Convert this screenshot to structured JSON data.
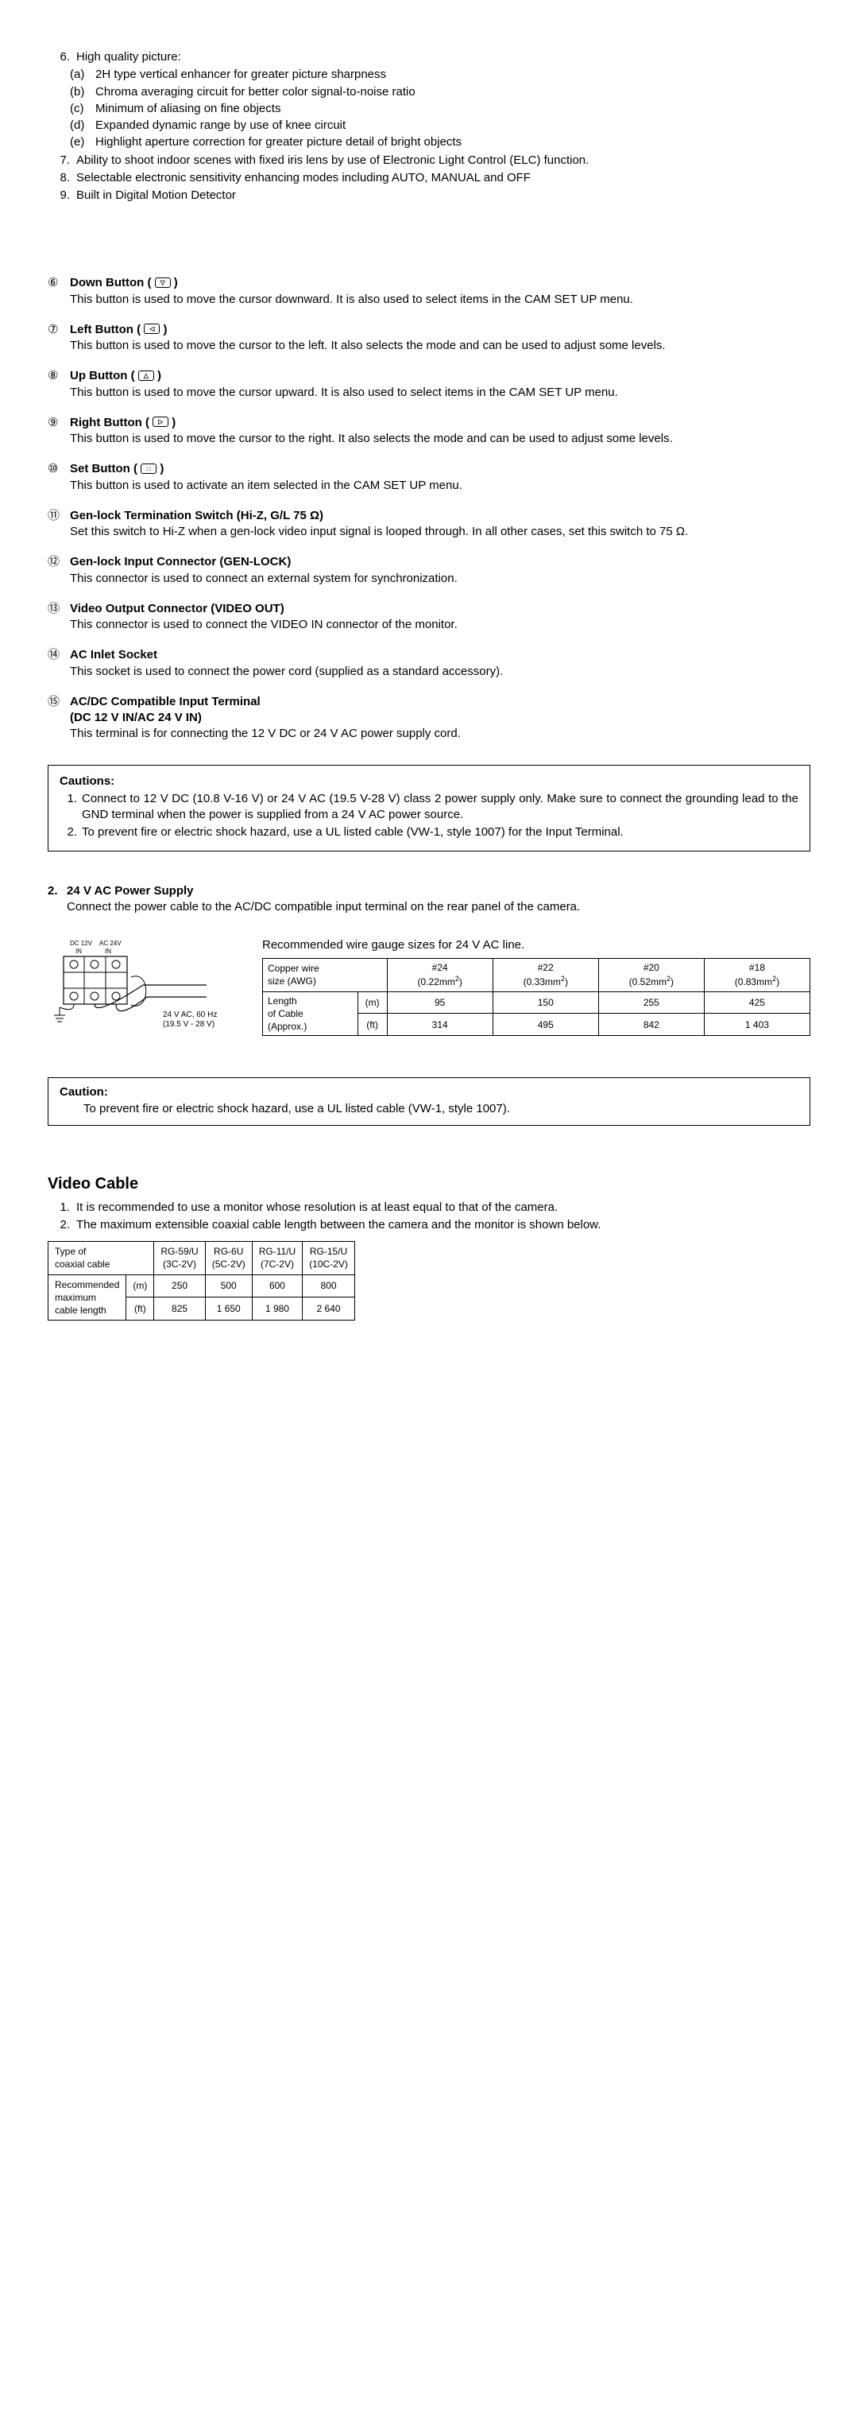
{
  "list6": {
    "n": "6.",
    "t": "High quality picture:",
    "sub": [
      {
        "n": "(a)",
        "t": "2H type vertical enhancer for greater picture sharpness"
      },
      {
        "n": "(b)",
        "t": "Chroma averaging circuit for better color signal-to-noise ratio"
      },
      {
        "n": "(c)",
        "t": "Minimum of aliasing on fine objects"
      },
      {
        "n": "(d)",
        "t": "Expanded dynamic range by use of knee circuit"
      },
      {
        "n": "(e)",
        "t": "Highlight aperture correction for greater picture detail of bright objects"
      }
    ]
  },
  "list7": {
    "n": "7.",
    "t": "Ability to shoot indoor scenes with fixed iris lens by use of Electronic Light Control (ELC) function."
  },
  "list8": {
    "n": "8.",
    "t": "Selectable electronic sensitivity enhancing modes including AUTO, MANUAL and OFF"
  },
  "list9": {
    "n": "9.",
    "t": "Built in Digital Motion Detector"
  },
  "items": [
    {
      "c": "⑥",
      "title": "Down Button ( ",
      "icon": "▽",
      "title2": " )",
      "body": "This button is used to move the cursor downward.  It is also used to select items in the CAM SET UP menu."
    },
    {
      "c": "⑦",
      "title": "Left Button ( ",
      "icon": "◁",
      "title2": " )",
      "body": "This button is used to move the cursor to the left.  It also selects the mode and can be used to adjust some levels."
    },
    {
      "c": "⑧",
      "title": "Up Button ( ",
      "icon": "△",
      "title2": " )",
      "body": "This button is used to move the cursor upward.  It is also used to select items in the CAM SET UP menu."
    },
    {
      "c": "⑨",
      "title": "Right Button ( ",
      "icon": "▷",
      "title2": " )",
      "body": "This button is used to move the cursor to the right.  It also selects the mode and can be used to adjust some levels."
    },
    {
      "c": "⑩",
      "title": "Set Button ( ",
      "icon": "□",
      "title2": " )",
      "body": "This button is used to activate an item selected in the CAM SET UP menu."
    },
    {
      "c": "⑪",
      "title": "Gen-lock Termination Switch (Hi-Z, G/L 75 Ω)",
      "icon": "",
      "title2": "",
      "body": "Set this switch to Hi-Z when a gen-lock video input signal is looped through.  In all other cases, set this switch to 75 Ω."
    },
    {
      "c": "⑫",
      "title": "Gen-lock Input Connector (GEN-LOCK)",
      "icon": "",
      "title2": "",
      "body": "This connector is used to connect an external system for synchronization."
    },
    {
      "c": "⑬",
      "title": "Video Output Connector (VIDEO OUT)",
      "icon": "",
      "title2": "",
      "body": "This connector is used to connect the VIDEO IN connector of the monitor."
    },
    {
      "c": "⑭",
      "title": "AC Inlet Socket",
      "icon": "",
      "title2": "",
      "body": "This socket is used to connect the power cord (supplied as a standard accessory)."
    },
    {
      "c": "⑮",
      "title": "AC/DC Compatible Input Terminal",
      "title_l2": "(DC 12 V IN/AC 24 V IN)",
      "icon": "",
      "title2": "",
      "body": "This terminal is for connecting the 12 V DC or 24 V AC power supply cord."
    }
  ],
  "cautions": {
    "hd": "Cautions:",
    "lines": [
      {
        "n": "1.",
        "t": "Connect to 12 V DC (10.8 V-16 V) or 24 V AC (19.5 V-28 V) class 2 power supply only.  Make sure to connect the grounding lead to the GND terminal when the power is supplied from a 24 V AC power source."
      },
      {
        "n": "2.",
        "t": "To prevent fire or electric shock hazard, use a UL listed cable (VW-1, style 1007) for the Input Terminal."
      }
    ]
  },
  "sec2": {
    "n": "2.",
    "t": "24 V AC Power Supply",
    "body": "Connect the power cable to the AC/DC compatible input terminal on the rear panel of the camera."
  },
  "diagram": {
    "lbl_dc": "DC 12V",
    "lbl_ac": "AC 24V",
    "lbl_in": "IN",
    "lbl_in2": "IN",
    "spec1": "24 V AC, 60 Hz",
    "spec2": "(19.5 V - 28 V)"
  },
  "wire": {
    "title": "Recommended wire gauge sizes for 24 V AC line.",
    "h1": "Copper wire\nsize (AWG)",
    "cols": [
      {
        "h": "#24",
        "s": "(0.22mm²)"
      },
      {
        "h": "#22",
        "s": "(0.33mm²)"
      },
      {
        "h": "#20",
        "s": "(0.52mm²)"
      },
      {
        "h": "#18",
        "s": "(0.83mm²)"
      }
    ],
    "r2": "Length\nof Cable\n(Approx.)",
    "u1": "(m)",
    "u2": "(ft)",
    "m": [
      "95",
      "150",
      "255",
      "425"
    ],
    "ft": [
      "314",
      "495",
      "842",
      "1 403"
    ]
  },
  "caution2": {
    "hd": "Caution:",
    "t": "To prevent fire or electric shock hazard, use a UL listed cable (VW-1, style 1007)."
  },
  "vc": {
    "h": "Video Cable",
    "l1": {
      "n": "1.",
      "t": "It is recommended to use a monitor whose resolution is at least equal to that of the camera."
    },
    "l2": {
      "n": "2.",
      "t": "The maximum extensible coaxial cable length between the camera and the monitor is shown below."
    }
  },
  "coax": {
    "h1": "Type of\ncoaxial cable",
    "cols": [
      {
        "a": "RG-59/U",
        "b": "(3C-2V)"
      },
      {
        "a": "RG-6U",
        "b": "(5C-2V)"
      },
      {
        "a": "RG-11/U",
        "b": "(7C-2V)"
      },
      {
        "a": "RG-15/U",
        "b": "(10C-2V)"
      }
    ],
    "r2": "Recommended\nmaximum\ncable length",
    "u1": "(m)",
    "u2": "(ft)",
    "m": [
      "250",
      "500",
      "600",
      "800"
    ],
    "ft": [
      "825",
      "1 650",
      "1 980",
      "2 640"
    ]
  }
}
